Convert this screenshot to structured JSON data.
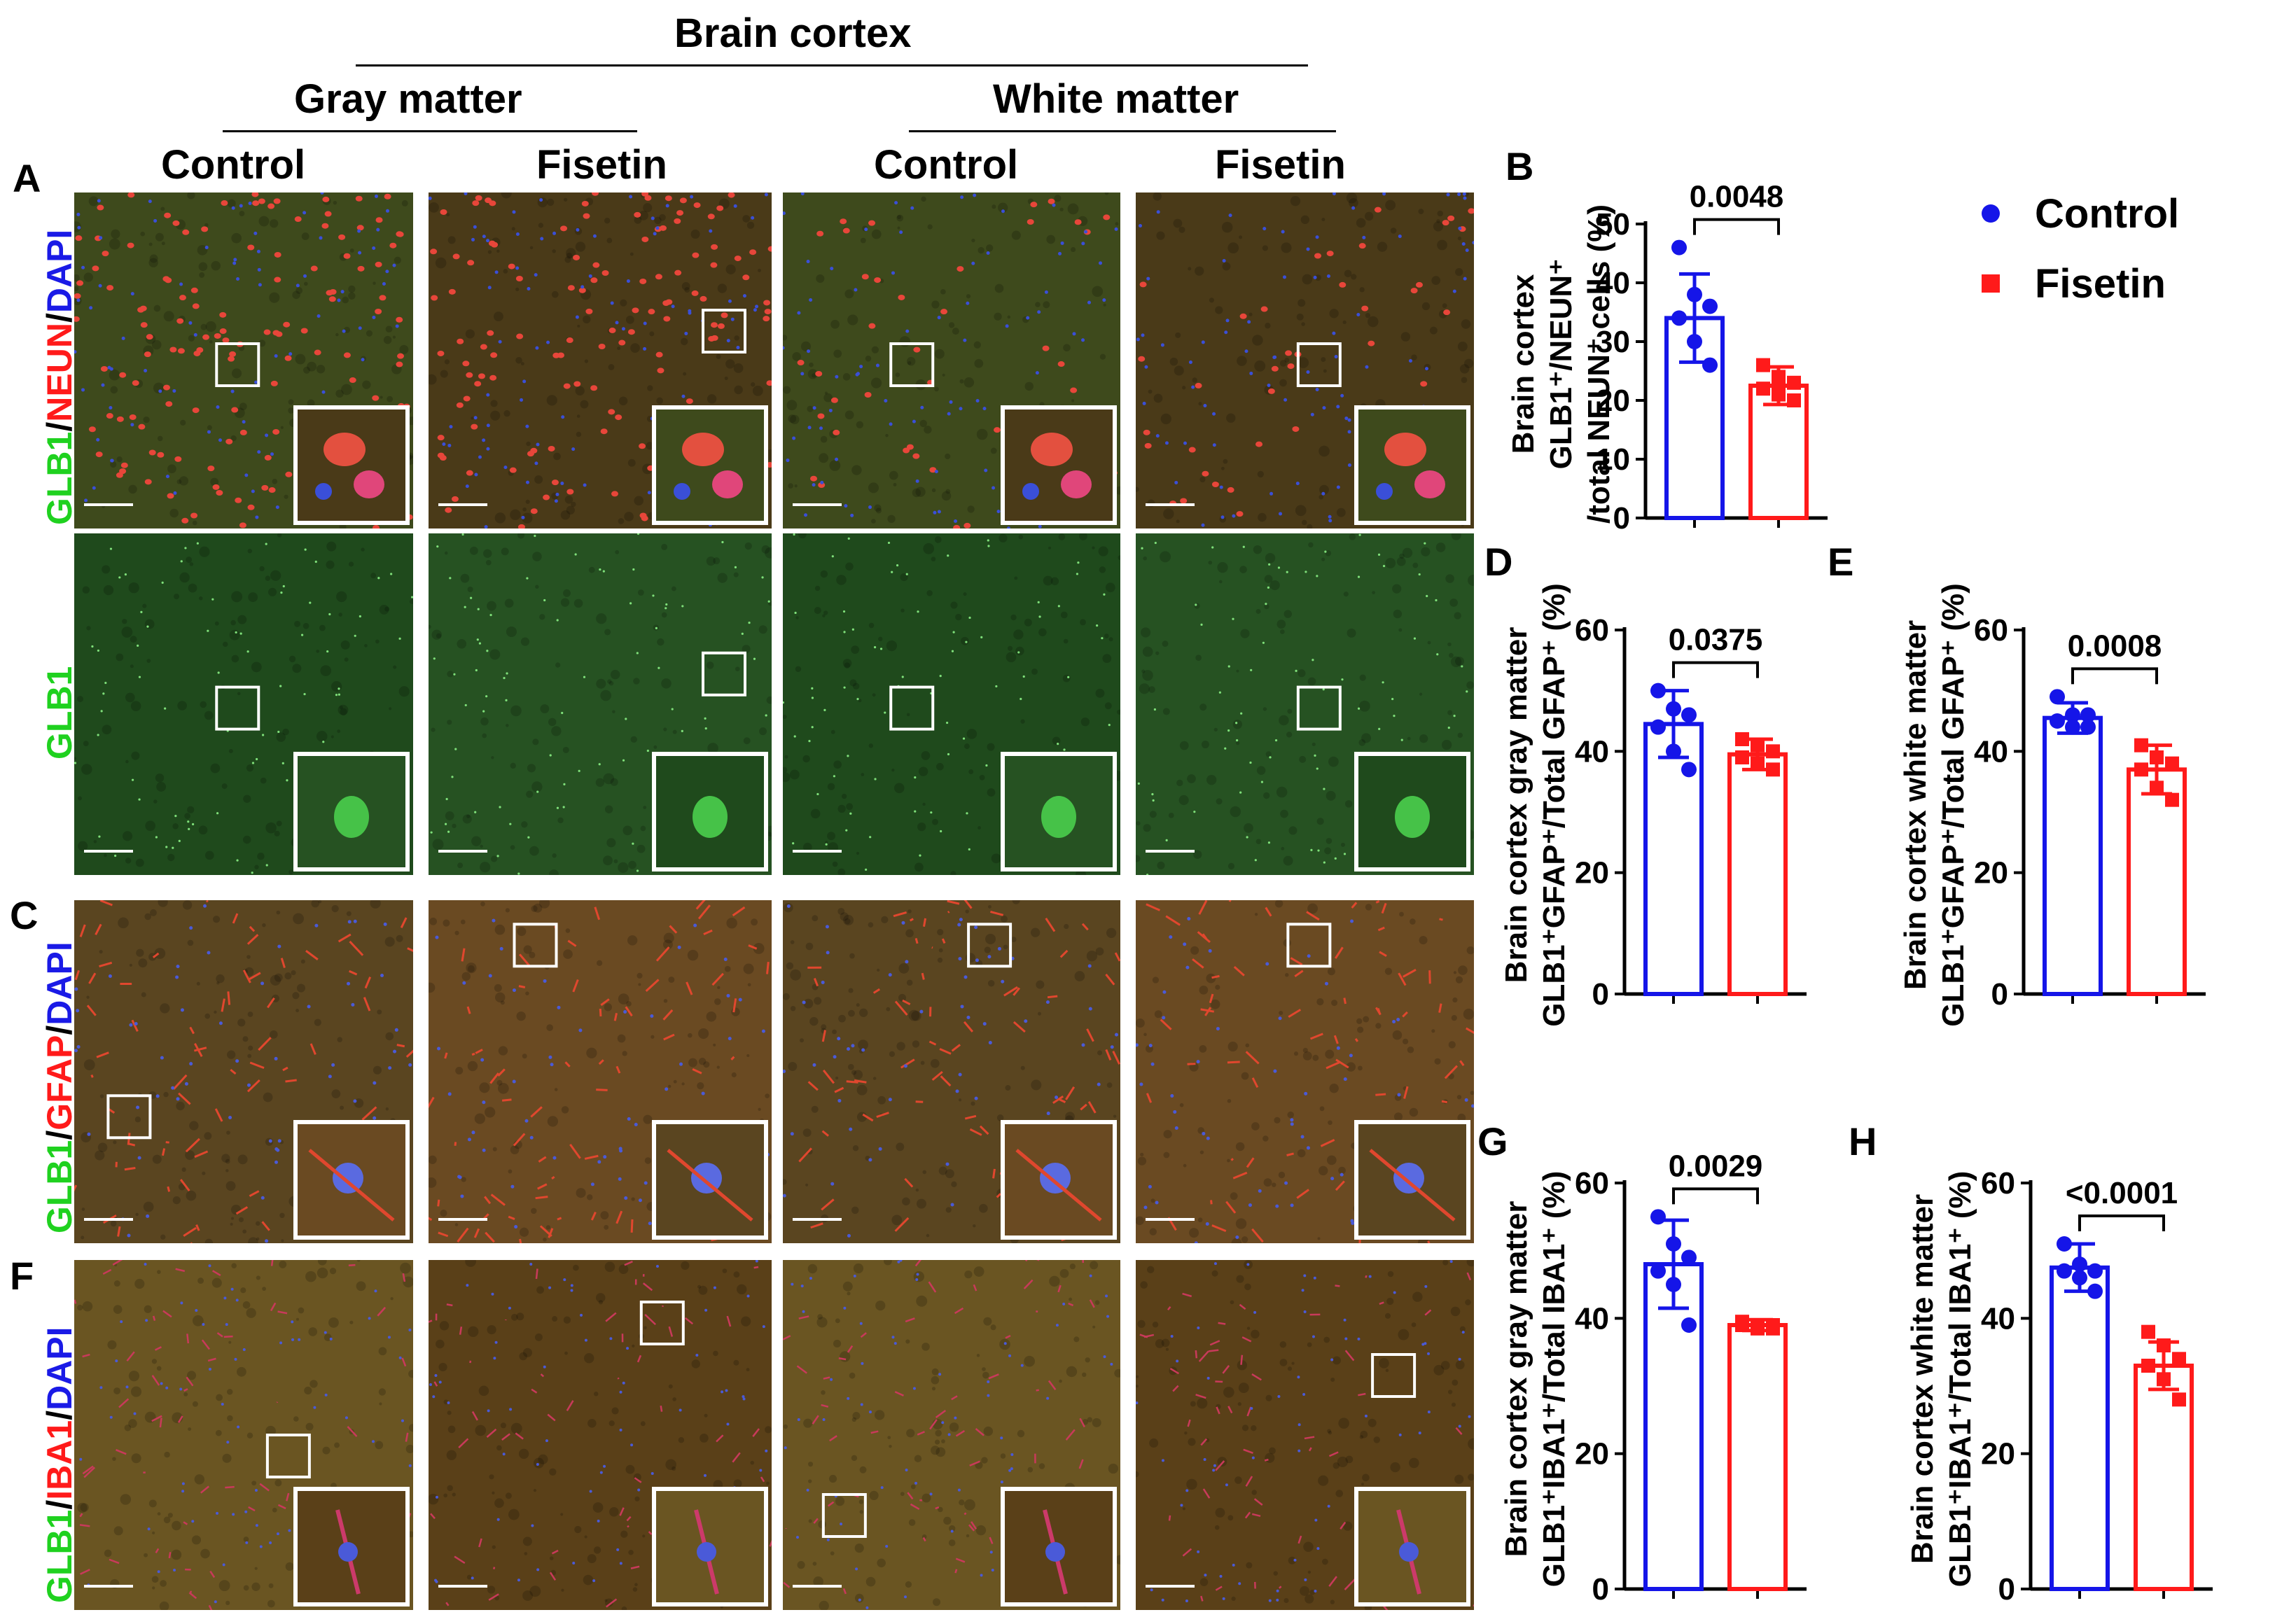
{
  "headers": {
    "region": "Brain cortex",
    "gray": "Gray matter",
    "white": "White matter",
    "col1": "Control",
    "col2": "Fisetin",
    "col3": "Control",
    "col4": "Fisetin"
  },
  "panels": {
    "A": "A",
    "B": "B",
    "C": "C",
    "D": "D",
    "E": "E",
    "F": "F",
    "G": "G",
    "H": "H"
  },
  "row_labels": {
    "neun": [
      "GLB1",
      "/",
      "NEUN",
      "/",
      "DAPI"
    ],
    "glb1": [
      "GLB1"
    ],
    "gfap": [
      "GLB1",
      "/",
      "GFAP",
      "/",
      "DAPI"
    ],
    "iba1": [
      "GLB1",
      "/",
      "IBA1",
      "/",
      "DAPI"
    ]
  },
  "colors": {
    "control": "#1515e8",
    "fisetin": "#ff1a1a",
    "label_green": "#1fd11f",
    "label_red": "#ff1a1a",
    "label_blue": "#1a1ae6"
  },
  "legend": {
    "control": "Control",
    "fisetin": "Fisetin"
  },
  "chart_data": [
    {
      "id": "B",
      "type": "bar",
      "categories": [
        "Control",
        "Fisetin"
      ],
      "ylabel_lines": [
        "Brain cortex",
        "GLB1⁺/NEUN⁺",
        "/total NEUN⁺ cells (%)"
      ],
      "ylim": [
        0,
        50
      ],
      "ticks": [
        0,
        10,
        20,
        30,
        40,
        50
      ],
      "means": [
        34,
        22.5
      ],
      "sd": [
        7.5,
        3.2
      ],
      "points": [
        [
          46,
          38,
          36,
          34,
          30,
          26
        ],
        [
          26,
          24,
          23,
          22,
          21,
          20
        ]
      ],
      "p": "0.0048"
    },
    {
      "id": "D",
      "type": "bar",
      "categories": [
        "Control",
        "Fisetin"
      ],
      "ylabel_lines": [
        "Brain cortex gray matter",
        "GLB1⁺GFAP⁺/Total GFAP⁺ (%)"
      ],
      "ylim": [
        0,
        60
      ],
      "ticks": [
        0,
        20,
        40,
        60
      ],
      "means": [
        44.5,
        39.5
      ],
      "sd": [
        5.5,
        2.5
      ],
      "points": [
        [
          50,
          47,
          46,
          44,
          40,
          37
        ],
        [
          42,
          41,
          40,
          39,
          38,
          37
        ]
      ],
      "p": "0.0375"
    },
    {
      "id": "E",
      "type": "bar",
      "categories": [
        "Control",
        "Fisetin"
      ],
      "ylabel_lines": [
        "Brain cortex white matter",
        "GLB1⁺GFAP⁺/Total GFAP⁺ (%)"
      ],
      "ylim": [
        0,
        60
      ],
      "ticks": [
        0,
        20,
        40,
        60
      ],
      "means": [
        45.5,
        37
      ],
      "sd": [
        2.5,
        4
      ],
      "points": [
        [
          49,
          46,
          46,
          45,
          44,
          44
        ],
        [
          41,
          39,
          38,
          37,
          34,
          32
        ]
      ],
      "p": "0.0008"
    },
    {
      "id": "G",
      "type": "bar",
      "categories": [
        "Control",
        "Fisetin"
      ],
      "ylabel_lines": [
        "Brain cortex gray matter",
        "GLB1⁺IBA1⁺/Total IBA1⁺ (%)"
      ],
      "ylim": [
        0,
        60
      ],
      "ticks": [
        0,
        20,
        40,
        60
      ],
      "means": [
        48,
        39
      ],
      "sd": [
        6.5,
        0.8
      ],
      "points": [
        [
          55,
          51,
          49,
          47,
          45,
          39
        ],
        [
          39.5,
          39,
          39,
          39,
          38.5,
          38.5
        ]
      ],
      "p": "0.0029"
    },
    {
      "id": "H",
      "type": "bar",
      "categories": [
        "Control",
        "Fisetin"
      ],
      "ylabel_lines": [
        "Brain cortex white matter",
        "GLB1⁺IBA1⁺/Total IBA1⁺ (%)"
      ],
      "ylim": [
        0,
        60
      ],
      "ticks": [
        0,
        20,
        40,
        60
      ],
      "means": [
        47.5,
        33
      ],
      "sd": [
        3.5,
        3.5
      ],
      "points": [
        [
          51,
          48,
          47,
          47,
          46,
          44
        ],
        [
          38,
          36,
          34,
          33,
          31,
          28
        ]
      ],
      "p": "<0.0001"
    }
  ]
}
